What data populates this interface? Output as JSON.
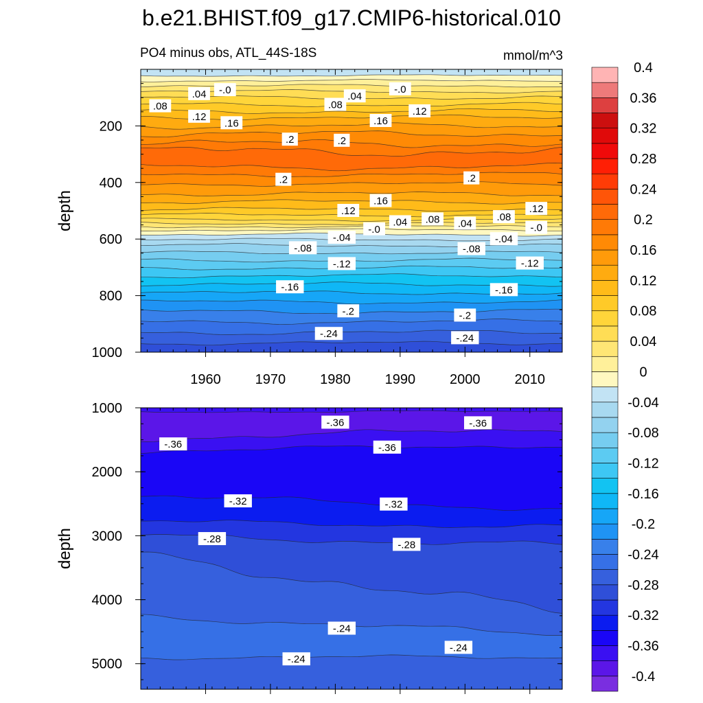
{
  "figure": {
    "title": "b.e21.BHIST.f09_g17.CMIP6-historical.010",
    "left_subtitle": "PO4 minus obs, ATL_44S-18S",
    "right_subtitle": "mmol/m^3"
  },
  "chart_data": [
    {
      "type": "contour",
      "panel": "upper",
      "xlabel": "",
      "ylabel": "depth",
      "xlim": [
        1950,
        2015
      ],
      "ylim": [
        1000,
        0
      ],
      "x_ticks": [
        1960,
        1970,
        1980,
        1990,
        2000,
        2010
      ],
      "x_tick_labels": [
        "1960",
        "1970",
        "1980",
        "1990",
        "2000",
        "2010"
      ],
      "y_ticks": [
        200,
        400,
        600,
        800,
        1000
      ],
      "y_tick_labels": [
        "200",
        "400",
        "600",
        "800",
        "1000"
      ],
      "contour_labels": [
        {
          "text": ".08",
          "year": 1953,
          "depth": 130
        },
        {
          "text": ".04",
          "year": 1959,
          "depth": 87
        },
        {
          "text": "-.0",
          "year": 1963,
          "depth": 73
        },
        {
          "text": ".12",
          "year": 1959,
          "depth": 167
        },
        {
          "text": ".16",
          "year": 1964,
          "depth": 190
        },
        {
          "text": ".2",
          "year": 1973,
          "depth": 248
        },
        {
          "text": ".08",
          "year": 1980,
          "depth": 125
        },
        {
          "text": ".04",
          "year": 1983,
          "depth": 95
        },
        {
          "text": "-.0",
          "year": 1990,
          "depth": 70
        },
        {
          "text": ".16",
          "year": 1987,
          "depth": 182
        },
        {
          "text": ".12",
          "year": 1993,
          "depth": 148
        },
        {
          "text": ".2",
          "year": 1981,
          "depth": 252
        },
        {
          "text": ".2",
          "year": 1972,
          "depth": 390
        },
        {
          "text": ".2",
          "year": 2001,
          "depth": 385
        },
        {
          "text": ".16",
          "year": 1987,
          "depth": 465
        },
        {
          "text": ".12",
          "year": 1982,
          "depth": 500
        },
        {
          "text": ".04",
          "year": 1990,
          "depth": 540
        },
        {
          "text": ".08",
          "year": 1995,
          "depth": 530
        },
        {
          "text": ".04",
          "year": 2000,
          "depth": 545
        },
        {
          "text": ".08",
          "year": 2006,
          "depth": 522
        },
        {
          "text": ".12",
          "year": 2011,
          "depth": 493
        },
        {
          "text": "-.0",
          "year": 1986,
          "depth": 565
        },
        {
          "text": "-.04",
          "year": 1981,
          "depth": 595
        },
        {
          "text": "-.08",
          "year": 1975,
          "depth": 632
        },
        {
          "text": "-.04",
          "year": 2006,
          "depth": 600
        },
        {
          "text": "-.0",
          "year": 2011,
          "depth": 560
        },
        {
          "text": "-.08",
          "year": 2001,
          "depth": 635
        },
        {
          "text": "-.12",
          "year": 1981,
          "depth": 688
        },
        {
          "text": "-.12",
          "year": 2010,
          "depth": 686
        },
        {
          "text": "-.16",
          "year": 1973,
          "depth": 770
        },
        {
          "text": "-.16",
          "year": 2006,
          "depth": 780
        },
        {
          "text": "-.2",
          "year": 1982,
          "depth": 855
        },
        {
          "text": "-.2",
          "year": 2000,
          "depth": 870
        },
        {
          "text": "-.24",
          "year": 1979,
          "depth": 935
        },
        {
          "text": "-.24",
          "year": 2000,
          "depth": 950
        }
      ]
    },
    {
      "type": "contour",
      "panel": "lower",
      "xlabel": "",
      "ylabel": "depth",
      "xlim": [
        1950,
        2015
      ],
      "ylim": [
        5400,
        1000
      ],
      "y_ticks": [
        1000,
        2000,
        3000,
        4000,
        5000
      ],
      "y_tick_labels": [
        "1000",
        "2000",
        "3000",
        "4000",
        "5000"
      ],
      "contour_labels": [
        {
          "text": "-.36",
          "year": 1980,
          "depth": 1230
        },
        {
          "text": "-.36",
          "year": 2002,
          "depth": 1240
        },
        {
          "text": "-.36",
          "year": 1955,
          "depth": 1570
        },
        {
          "text": "-.36",
          "year": 1988,
          "depth": 1620
        },
        {
          "text": "-.32",
          "year": 1965,
          "depth": 2460
        },
        {
          "text": "-.32",
          "year": 1989,
          "depth": 2510
        },
        {
          "text": "-.28",
          "year": 1961,
          "depth": 3050
        },
        {
          "text": "-.28",
          "year": 1991,
          "depth": 3140
        },
        {
          "text": "-.24",
          "year": 1981,
          "depth": 4450
        },
        {
          "text": "-.24",
          "year": 1999,
          "depth": 4750
        },
        {
          "text": "-.24",
          "year": 1974,
          "depth": 4930
        }
      ]
    }
  ],
  "colorbar": {
    "levels": [
      -0.4,
      -0.38,
      -0.36,
      -0.34,
      -0.32,
      -0.3,
      -0.28,
      -0.26,
      -0.24,
      -0.22,
      -0.2,
      -0.18,
      -0.16,
      -0.14,
      -0.12,
      -0.1,
      -0.08,
      -0.06,
      -0.04,
      -0.02,
      0,
      0.02,
      0.04,
      0.06,
      0.08,
      0.1,
      0.12,
      0.14,
      0.16,
      0.18,
      0.2,
      0.22,
      0.24,
      0.26,
      0.28,
      0.3,
      0.32,
      0.34,
      0.36,
      0.38,
      0.4
    ],
    "labels": [
      "-0.4",
      "-0.36",
      "-0.32",
      "-0.28",
      "-0.24",
      "-0.2",
      "-0.16",
      "-0.12",
      "-0.08",
      "-0.04",
      "0",
      "0.04",
      "0.08",
      "0.12",
      "0.16",
      "0.2",
      "0.24",
      "0.28",
      "0.32",
      "0.36",
      "0.4"
    ],
    "colors": [
      "#7a2ee0",
      "#5b16e8",
      "#3a10f2",
      "#1a06f6",
      "#0b1cf0",
      "#2336e0",
      "#2f4fd8",
      "#3660dd",
      "#3670e6",
      "#3880ea",
      "#1f93f4",
      "#16a6f7",
      "#0fb7f6",
      "#12c3f2",
      "#3dc7f4",
      "#5ccbf2",
      "#76cdf0",
      "#93d2ef",
      "#a8d9f0",
      "#c2e3f4",
      "#fff8c0",
      "#fff09a",
      "#ffe675",
      "#ffdd55",
      "#ffd53a",
      "#ffca28",
      "#ffbb19",
      "#ffab10",
      "#ff9b0a",
      "#ff8a05",
      "#ff7a06",
      "#ff6a08",
      "#ff5508",
      "#ff3c06",
      "#ff1f05",
      "#f00a0a",
      "#e00a0a",
      "#cc0f0f",
      "#dd4040",
      "#ee7a7a",
      "#ffb4b4"
    ]
  }
}
